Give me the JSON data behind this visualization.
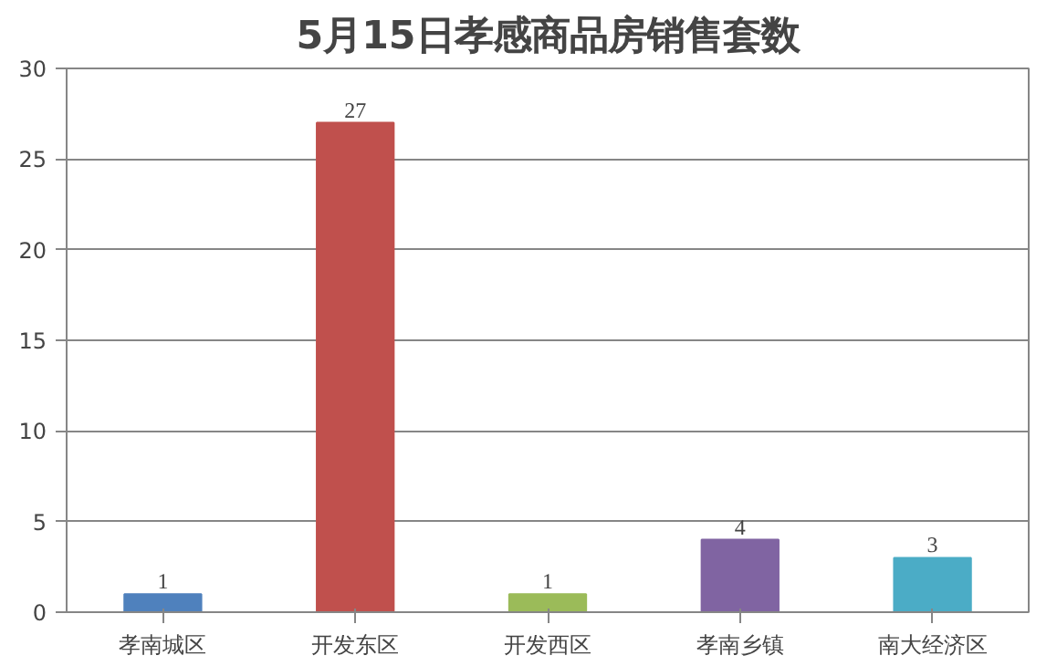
{
  "chart_data": {
    "type": "bar",
    "title": "5月15日孝感商品房销售套数",
    "categories": [
      "孝南城区",
      "开发东区",
      "开发西区",
      "孝南乡镇",
      "南大经济区"
    ],
    "values": [
      1,
      27,
      1,
      4,
      3
    ],
    "colors": [
      "#4f81bd",
      "#c0504d",
      "#9bbb59",
      "#8064a2",
      "#4bacc6"
    ],
    "ylim": [
      0,
      30
    ],
    "yticks": [
      0,
      5,
      10,
      15,
      20,
      25,
      30
    ],
    "grid": "y",
    "data_labels": true
  }
}
